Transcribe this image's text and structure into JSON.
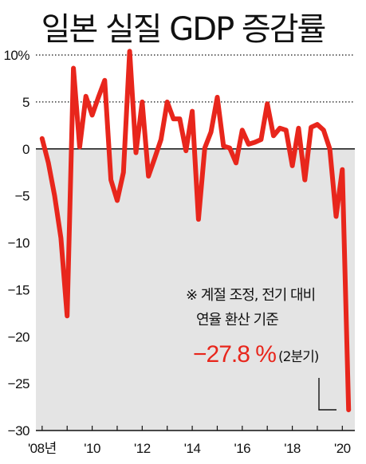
{
  "chart_data": {
    "type": "line",
    "title": "일본 실질 GDP 증감률",
    "xlabel": "",
    "ylabel": "",
    "ylim": [
      -30,
      10
    ],
    "y_ticks": [
      10,
      5,
      0,
      -5,
      -10,
      -15,
      -20,
      -25,
      -30
    ],
    "y_tick_labels": [
      "10%",
      "5",
      "0",
      "−5",
      "−10",
      "−15",
      "−20",
      "−25",
      "−30"
    ],
    "x_range": [
      2007.75,
      2020.5
    ],
    "x_ticks": [
      {
        "x": 2008,
        "label": "'08년"
      },
      {
        "x": 2010,
        "label": "'10"
      },
      {
        "x": 2012,
        "label": "'12"
      },
      {
        "x": 2014,
        "label": "'14"
      },
      {
        "x": 2016,
        "label": "'16"
      },
      {
        "x": 2018,
        "label": "'18"
      },
      {
        "x": 2020,
        "label": "'20"
      }
    ],
    "gridlines": [
      10,
      5,
      0
    ],
    "line_color": "#e8261c",
    "series": [
      {
        "name": "",
        "x": [
          2008.0,
          2008.25,
          2008.5,
          2008.75,
          2009.0,
          2009.25,
          2009.5,
          2009.75,
          2010.0,
          2010.25,
          2010.5,
          2010.75,
          2011.0,
          2011.25,
          2011.5,
          2011.75,
          2012.0,
          2012.25,
          2012.5,
          2012.75,
          2013.0,
          2013.25,
          2013.5,
          2013.75,
          2014.0,
          2014.25,
          2014.5,
          2014.75,
          2015.0,
          2015.25,
          2015.5,
          2015.75,
          2016.0,
          2016.25,
          2016.5,
          2016.75,
          2017.0,
          2017.25,
          2017.5,
          2017.75,
          2018.0,
          2018.25,
          2018.5,
          2018.75,
          2019.0,
          2019.25,
          2019.5,
          2019.75,
          2020.0,
          2020.25
        ],
        "y": [
          1.1,
          -1.5,
          -5.0,
          -9.5,
          -17.8,
          8.6,
          0.2,
          5.6,
          3.6,
          5.5,
          7.3,
          -3.3,
          -5.5,
          -2.5,
          10.4,
          -0.4,
          5.0,
          -2.9,
          -1.0,
          1.0,
          5.0,
          3.2,
          3.2,
          -0.2,
          4.0,
          -7.5,
          0.1,
          1.8,
          5.5,
          0.3,
          0.1,
          -1.5,
          2.0,
          0.5,
          0.7,
          1.0,
          4.8,
          1.4,
          2.2,
          2.0,
          -1.8,
          2.2,
          -3.3,
          2.3,
          2.6,
          2.0,
          0.0,
          -7.2,
          -2.2,
          -27.8
        ]
      }
    ],
    "annotations": {
      "note_line1": "※ 계절 조정, 전기 대비",
      "note_line2": "연율 환산 기준",
      "highlight_value": "−27.8 %",
      "highlight_period": "(2분기)"
    }
  }
}
